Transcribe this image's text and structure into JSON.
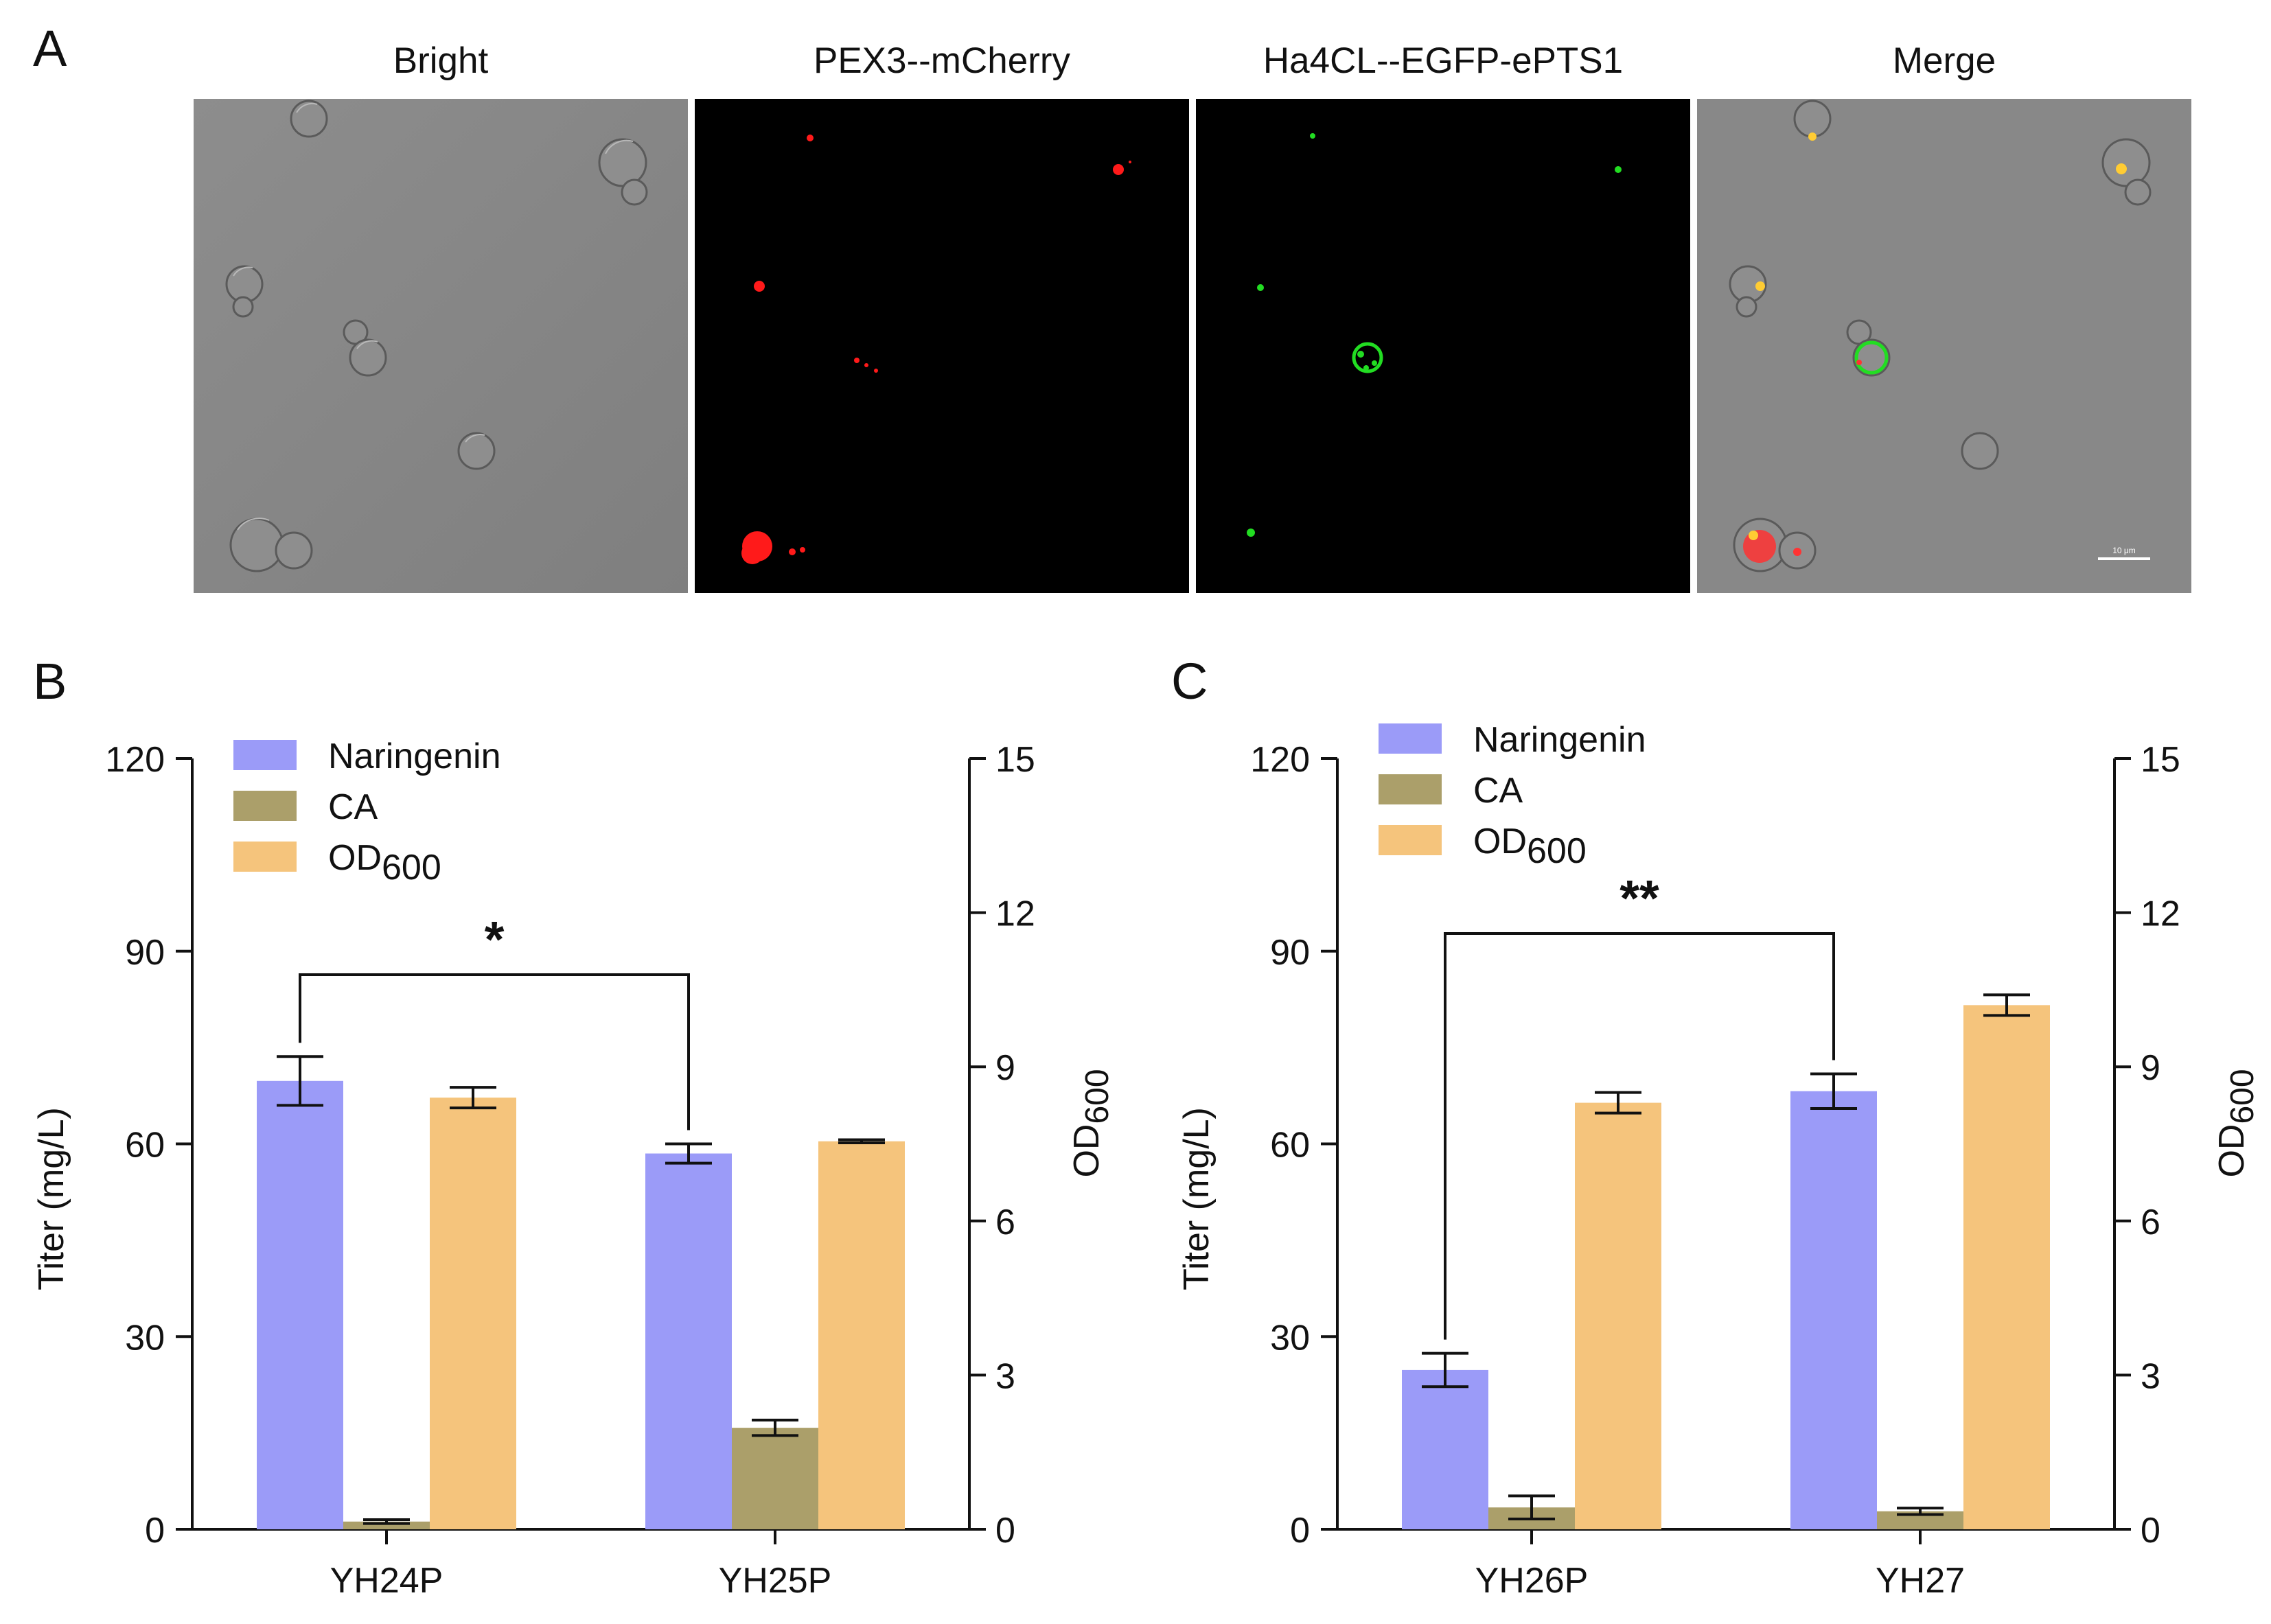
{
  "panels": {
    "a_label": "A",
    "b_label": "B",
    "c_label": "C"
  },
  "microscopy": {
    "titles": [
      "Bright",
      "PEX3--mCherry",
      "Ha4CL--EGFP-ePTS1",
      "Merge"
    ],
    "scale_bar_label": "10 μm",
    "colors": {
      "bright_bg": "#8a8a8a",
      "fluor_bg": "#000000",
      "red": "#ff1a1a",
      "green": "#22dd22",
      "yellow": "#ffcc33"
    }
  },
  "chart_data": [
    {
      "type": "bar",
      "panel": "B",
      "categories": [
        "YH24P",
        "YH25P"
      ],
      "ylabel": "Titer (mg/L)",
      "ylim": [
        0,
        120
      ],
      "yticks": [
        "0",
        "30",
        "60",
        "90",
        "120"
      ],
      "y2label_main": "OD",
      "y2label_sub": "600",
      "y2lim": [
        0,
        15
      ],
      "y2ticks": [
        "0",
        "3",
        "6",
        "9",
        "12",
        "15"
      ],
      "legend_location": "top-left",
      "series": [
        {
          "name": "Naringenin",
          "axis": "left",
          "color": "#9b9bf8",
          "values": [
            69.8,
            58.5
          ],
          "errors": [
            3.8,
            1.5
          ]
        },
        {
          "name": "CA",
          "axis": "left",
          "color": "#ab9f6a",
          "values": [
            1.2,
            15.8
          ],
          "errors": [
            0.3,
            1.2
          ]
        },
        {
          "name": "OD",
          "name_sub": "600",
          "axis": "right",
          "color": "#f5c47c",
          "values": [
            8.4,
            7.55
          ],
          "errors": [
            0.2,
            0.03
          ]
        }
      ],
      "significance": {
        "label": "*",
        "from": "YH24P",
        "to": "YH25P"
      }
    },
    {
      "type": "bar",
      "panel": "C",
      "categories": [
        "YH26P",
        "YH27"
      ],
      "ylabel": "Titer (mg/L)",
      "ylim": [
        0,
        120
      ],
      "yticks": [
        "0",
        "30",
        "60",
        "90",
        "120"
      ],
      "y2label_main": "OD",
      "y2label_sub": "600",
      "y2lim": [
        0,
        15
      ],
      "y2ticks": [
        "0",
        "3",
        "6",
        "9",
        "12",
        "15"
      ],
      "legend_location": "top-left",
      "series": [
        {
          "name": "Naringenin",
          "axis": "left",
          "color": "#9b9bf8",
          "values": [
            24.8,
            68.2
          ],
          "errors": [
            2.6,
            2.7
          ]
        },
        {
          "name": "CA",
          "axis": "left",
          "color": "#ab9f6a",
          "values": [
            3.4,
            2.8
          ],
          "errors": [
            1.8,
            0.5
          ]
        },
        {
          "name": "OD",
          "name_sub": "600",
          "axis": "right",
          "color": "#f5c47c",
          "values": [
            8.3,
            10.2
          ],
          "errors": [
            0.2,
            0.2
          ]
        }
      ],
      "significance": {
        "label": "**",
        "from": "YH26P",
        "to": "YH27"
      }
    }
  ]
}
